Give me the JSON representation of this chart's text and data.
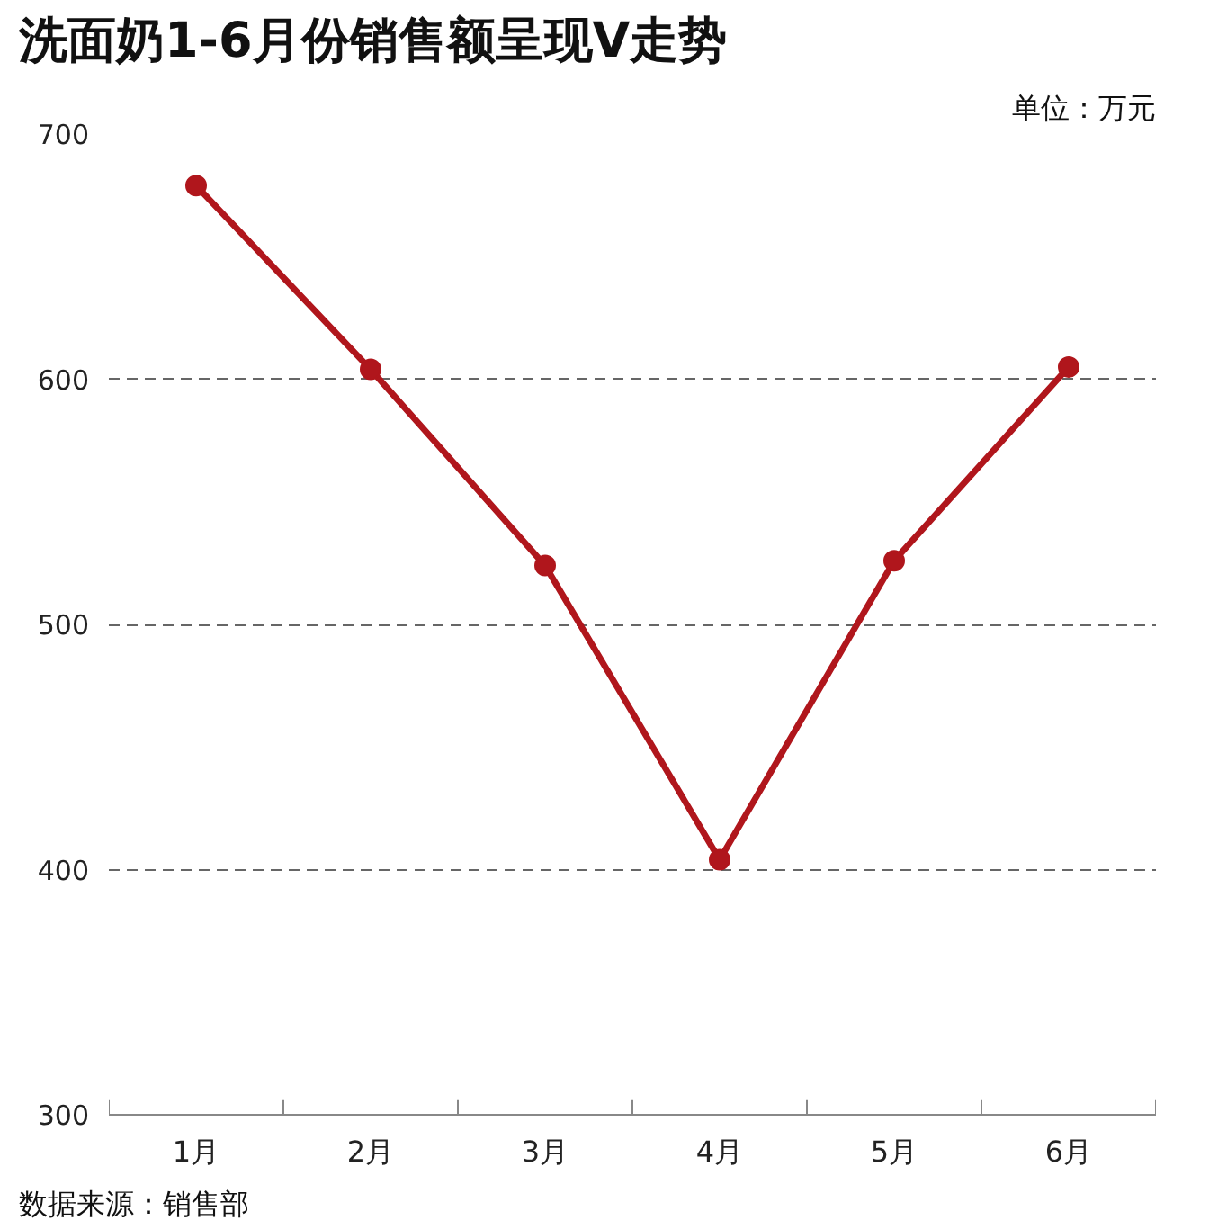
{
  "chart_data": {
    "type": "line",
    "title": "洗面奶1-6月份销售额呈现V走势",
    "categories": [
      "1月",
      "2月",
      "3月",
      "4月",
      "5月",
      "6月"
    ],
    "series": [
      {
        "color": "#b0161c",
        "values": [
          679,
          604,
          524,
          404,
          526,
          605
        ]
      }
    ],
    "ylim": [
      300,
      700
    ],
    "yticks": [
      300,
      400,
      500,
      600,
      700
    ],
    "grid": "y",
    "marker": "circle",
    "line_style": "solid",
    "annotations": [
      "单位：万元",
      "数据来源：销售部"
    ]
  }
}
